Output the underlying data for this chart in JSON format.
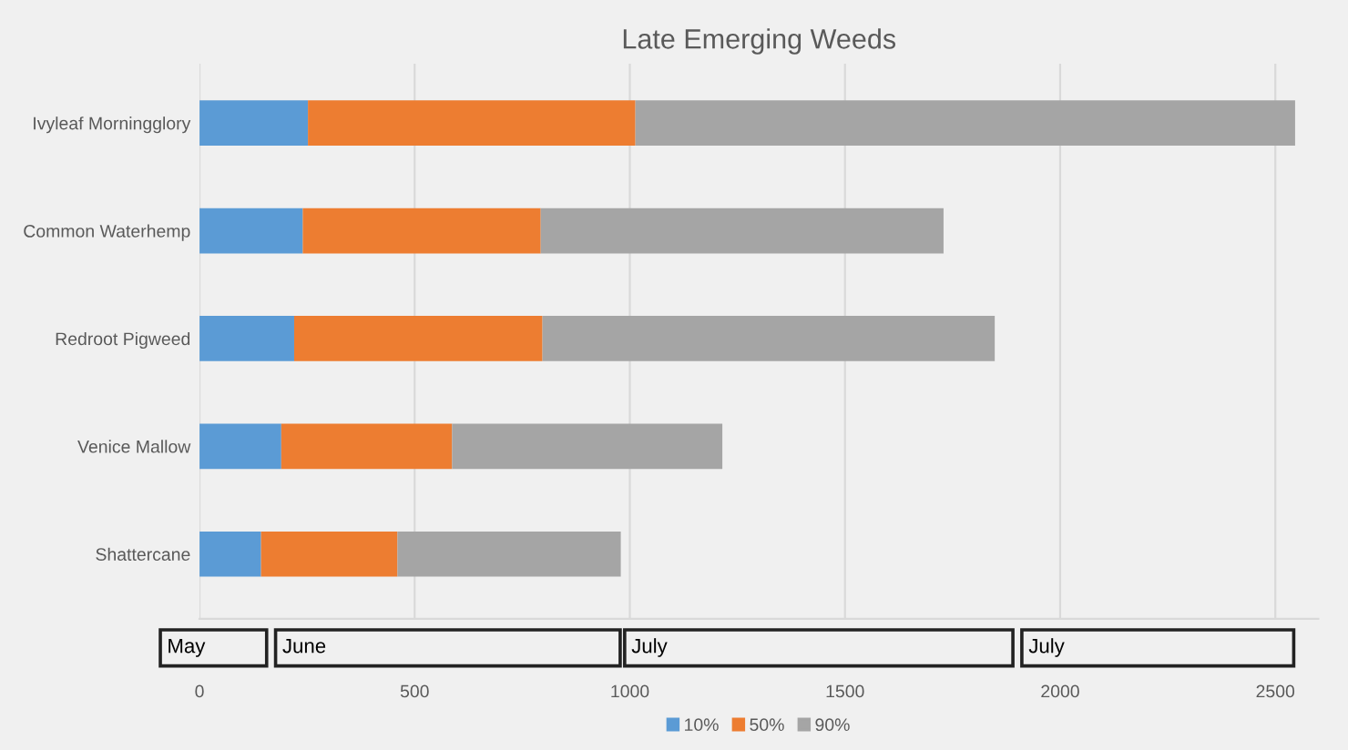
{
  "chart_data": {
    "type": "bar",
    "orientation": "horizontal",
    "stacked": true,
    "title": "Late Emerging Weeds",
    "categories": [
      "Ivyleaf Morningglory",
      "Common Waterhemp",
      "Redroot Pigweed",
      "Venice Mallow",
      "Shattercane"
    ],
    "series": [
      {
        "name": "10%",
        "color": "#5b9bd5",
        "values": [
          252,
          240,
          220,
          190,
          143
        ]
      },
      {
        "name": "50%",
        "color": "#ed7d31",
        "values": [
          761,
          553,
          577,
          397,
          317
        ]
      },
      {
        "name": "90%",
        "color": "#a5a5a5",
        "values": [
          1533,
          936,
          1051,
          628,
          519
        ]
      }
    ],
    "xlim": [
      0,
      2600
    ],
    "xticks": [
      0,
      500,
      1000,
      1500,
      2000,
      2500
    ],
    "grid": "x",
    "legend": "bottom",
    "annotations": [
      "May",
      "June",
      "July",
      "July"
    ]
  }
}
